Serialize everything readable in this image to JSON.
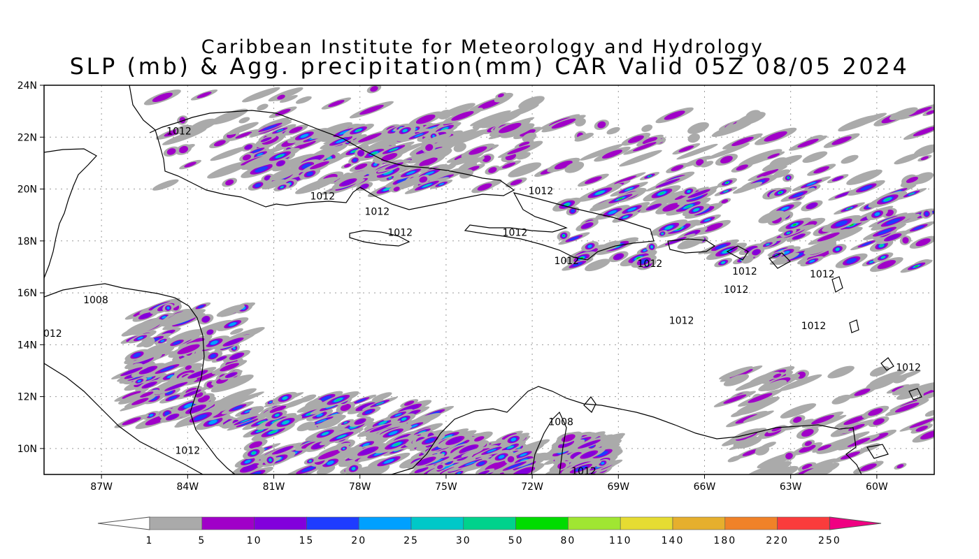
{
  "title": {
    "line1": "Caribbean Institute for Meteorology and Hydrology",
    "line2": "SLP (mb) & Agg. precipitation(mm) CAR Valid 05Z 08/05 2024"
  },
  "axes": {
    "lat_labels": [
      "24N",
      "22N",
      "20N",
      "18N",
      "16N",
      "14N",
      "12N",
      "10N"
    ],
    "lon_labels": [
      "87W",
      "84W",
      "81W",
      "78W",
      "75W",
      "72W",
      "69W",
      "66W",
      "63W",
      "60W"
    ],
    "lon_range": [
      -89,
      -58
    ],
    "lat_range": [
      9,
      24
    ]
  },
  "isobars": [
    {
      "text": "1012",
      "lon": -84.3,
      "lat": 22.1
    },
    {
      "text": "1012",
      "lon": -79.3,
      "lat": 19.6
    },
    {
      "text": "1012",
      "lon": -77.4,
      "lat": 19.0
    },
    {
      "text": "1012",
      "lon": -76.6,
      "lat": 18.2
    },
    {
      "text": "1012",
      "lon": -71.7,
      "lat": 19.8
    },
    {
      "text": "1012",
      "lon": -72.6,
      "lat": 18.2
    },
    {
      "text": "1012",
      "lon": -70.8,
      "lat": 17.1
    },
    {
      "text": "1012",
      "lon": -67.9,
      "lat": 17.0
    },
    {
      "text": "1012",
      "lon": -64.6,
      "lat": 16.7
    },
    {
      "text": "1012",
      "lon": -61.9,
      "lat": 16.6
    },
    {
      "text": "1012",
      "lon": -64.9,
      "lat": 16.0
    },
    {
      "text": "1012",
      "lon": -66.8,
      "lat": 14.8
    },
    {
      "text": "1012",
      "lon": -62.2,
      "lat": 14.6
    },
    {
      "text": "1012",
      "lon": -58.9,
      "lat": 13.0
    },
    {
      "text": "1008",
      "lon": -87.2,
      "lat": 15.6
    },
    {
      "text": "012",
      "lon": -88.7,
      "lat": 14.3
    },
    {
      "text": "1008",
      "lon": -71.0,
      "lat": 10.9
    },
    {
      "text": "1012",
      "lon": -84.0,
      "lat": 9.8
    },
    {
      "text": "1012",
      "lon": -70.2,
      "lat": 9.0
    }
  ],
  "legend": {
    "labels": [
      "1",
      "5",
      "10",
      "15",
      "20",
      "25",
      "30",
      "50",
      "80",
      "110",
      "140",
      "180",
      "220",
      "250"
    ],
    "colors": [
      "#aaaaaa",
      "#a000c8",
      "#8200dc",
      "#1e3cff",
      "#00a0ff",
      "#00c8c8",
      "#00d28c",
      "#00dc00",
      "#a0e632",
      "#e6dc32",
      "#e6af2d",
      "#f08228",
      "#fa3c3c",
      "#f00082"
    ],
    "low_end_color": "#ffffff"
  },
  "precip_bands": [
    {
      "lon": [
        -85,
        -72
      ],
      "lat": [
        20,
        24
      ],
      "level": 1
    },
    {
      "lon": [
        -82,
        -75
      ],
      "lat": [
        20,
        22.4
      ],
      "level": 6
    },
    {
      "lon": [
        -76,
        -58
      ],
      "lat": [
        20.3,
        23
      ],
      "level": 1
    },
    {
      "lon": [
        -71,
        -58
      ],
      "lat": [
        17,
        20.5
      ],
      "level": 7
    },
    {
      "lon": [
        -86,
        -82
      ],
      "lat": [
        11,
        15.5
      ],
      "level": 4
    },
    {
      "lon": [
        -82,
        -75
      ],
      "lat": [
        9,
        12
      ],
      "level": 6
    },
    {
      "lon": [
        -76,
        -72
      ],
      "lat": [
        9,
        10.5
      ],
      "level": 5
    },
    {
      "lon": [
        -71,
        -69.5
      ],
      "lat": [
        9,
        10.5
      ],
      "level": 4
    },
    {
      "lon": [
        -65,
        -58
      ],
      "lat": [
        9,
        13
      ],
      "level": 1
    }
  ]
}
